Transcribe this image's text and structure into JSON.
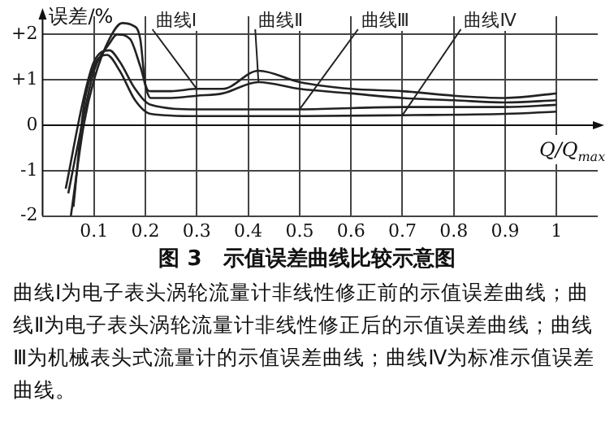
{
  "chart_data": {
    "type": "line",
    "title": "图 3　示值误差曲线比较示意图",
    "xlabel": "Q/Q$_{max}$",
    "ylabel": "误差/%",
    "xlim": [
      0,
      1.08
    ],
    "xticks": [
      0.1,
      0.2,
      0.3,
      0.4,
      0.5,
      0.6,
      0.7,
      0.8,
      0.9,
      1.0
    ],
    "ylim": [
      -2,
      2.4
    ],
    "yticks": [
      {
        "value": -2,
        "label": "-2"
      },
      {
        "value": -1,
        "label": "-1"
      },
      {
        "value": 0,
        "label": "0"
      },
      {
        "value": 1,
        "label": "+1"
      },
      {
        "value": 2,
        "label": "+2"
      }
    ],
    "grid": true,
    "legend": false,
    "marker": "none",
    "line_style": "solid",
    "series": [
      {
        "name": "曲线Ⅰ",
        "color": "#222222",
        "x": [
          0.055,
          0.08,
          0.1,
          0.13,
          0.155,
          0.175,
          0.19,
          0.2,
          0.21,
          0.25,
          0.3,
          0.35,
          0.42,
          0.5,
          0.6,
          0.7,
          0.8,
          0.9,
          1.0
        ],
        "values": [
          -2.0,
          0,
          1.0,
          1.9,
          2.25,
          2.2,
          1.9,
          0.9,
          0.75,
          0.75,
          0.8,
          0.8,
          1.2,
          0.95,
          0.8,
          0.75,
          0.65,
          0.6,
          0.7
        ]
      },
      {
        "name": "曲线Ⅱ",
        "color": "#222222",
        "x": [
          0.05,
          0.08,
          0.1,
          0.13,
          0.145,
          0.17,
          0.19,
          0.21,
          0.25,
          0.3,
          0.35,
          0.42,
          0.5,
          0.6,
          0.7,
          0.8,
          0.9,
          1.0
        ],
        "values": [
          -1.5,
          0.2,
          1.2,
          1.8,
          2.0,
          1.9,
          1.3,
          0.6,
          0.6,
          0.65,
          0.7,
          0.95,
          0.8,
          0.7,
          0.6,
          0.55,
          0.5,
          0.55
        ]
      },
      {
        "name": "曲线Ⅲ",
        "color": "#222222",
        "x": [
          0.045,
          0.08,
          0.1,
          0.13,
          0.15,
          0.18,
          0.21,
          0.3,
          0.5,
          0.7,
          0.9,
          1.0
        ],
        "values": [
          -1.4,
          0.6,
          1.4,
          1.65,
          1.4,
          0.8,
          0.45,
          0.35,
          0.35,
          0.4,
          0.4,
          0.45
        ]
      },
      {
        "name": "曲线Ⅳ",
        "color": "#222222",
        "x": [
          0.06,
          0.08,
          0.1,
          0.125,
          0.15,
          0.18,
          0.21,
          0.3,
          0.5,
          0.7,
          0.9,
          1.0
        ],
        "values": [
          -1.8,
          0.4,
          1.3,
          1.55,
          1.2,
          0.55,
          0.25,
          0.2,
          0.2,
          0.22,
          0.25,
          0.3
        ]
      }
    ],
    "annotations": [
      "曲线Ⅰ为电子表头涡轮流量计非线性修正前的示值误差曲线；曲线Ⅱ为电子表头涡轮流量计非线性修正后的示值误差曲线；曲线Ⅲ为机械表头式流量计的示值误差曲线；曲线Ⅳ为标准示值误差曲线。"
    ]
  }
}
